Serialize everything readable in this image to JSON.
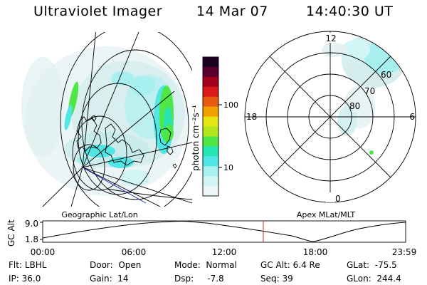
{
  "header": {
    "instrument": "Ultraviolet Imager",
    "date": "14 Mar 07",
    "time": "14:40:30 UT"
  },
  "colorbar": {
    "unit_label": "photon cm⁻²s⁻¹",
    "ticks": [
      "100",
      "10"
    ],
    "colors": [
      "#1c0020",
      "#5a0030",
      "#a0001a",
      "#d81a1a",
      "#e85a10",
      "#f0a000",
      "#e6e614",
      "#b4e61e",
      "#50e646",
      "#28e6b4",
      "#50e6e6",
      "#a8f0f0",
      "#d2f5f5",
      "#ecf6f6"
    ]
  },
  "left_panel": {
    "title": "Geographic Lat/Lon"
  },
  "right_panel": {
    "title": "Apex MLat/MLT",
    "mlt_labels": {
      "top": "12",
      "left": "18",
      "right": "6",
      "bottom": "0"
    },
    "lat_labels": [
      "60",
      "70",
      "80"
    ]
  },
  "altitude_plot": {
    "ylabel": "GC Alt",
    "ytick_top": "9.0",
    "ytick_bottom": "1.8",
    "xticks": [
      "00:00",
      "06:00",
      "12:00",
      "18:00",
      "23:59"
    ],
    "marker_color": "#c82828"
  },
  "status": {
    "flt_label": "Flt:",
    "flt_value": "LBHL",
    "ip_label": "IP:",
    "ip_value": "36.0",
    "door_label": "Door:",
    "door_value": "Open",
    "gain_label": "Gain:",
    "gain_value": "14",
    "mode_label": "Mode:",
    "mode_value": "Normal",
    "dsp_label": "Dsp:",
    "dsp_value": "-7.8",
    "gcalt_label": "GC Alt:",
    "gcalt_value": "6.4 Re",
    "seq_label": "Seq:",
    "seq_value": "39",
    "glat_label": "GLat:",
    "glat_value": "-75.5",
    "glon_label": "GLon:",
    "glon_value": "244.4"
  }
}
